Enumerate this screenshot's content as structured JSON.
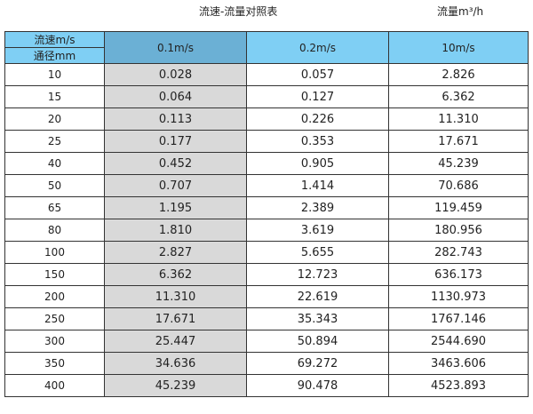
{
  "title": "流速-流量对照表",
  "unit_label": "流量m³/h",
  "table": {
    "corner_top": "流速m/s",
    "corner_bottom": "通径mm",
    "columns": [
      "0.1m/s",
      "0.2m/s",
      "10m/s"
    ],
    "rows": [
      [
        "10",
        "0.028",
        "0.057",
        "2.826"
      ],
      [
        "15",
        "0.064",
        "0.127",
        "6.362"
      ],
      [
        "20",
        "0.113",
        "0.226",
        "11.310"
      ],
      [
        "25",
        "0.177",
        "0.353",
        "17.671"
      ],
      [
        "40",
        "0.452",
        "0.905",
        "45.239"
      ],
      [
        "50",
        "0.707",
        "1.414",
        "70.686"
      ],
      [
        "65",
        "1.195",
        "2.389",
        "119.459"
      ],
      [
        "80",
        "1.810",
        "3.619",
        "180.956"
      ],
      [
        "100",
        "2.827",
        "5.655",
        "282.743"
      ],
      [
        "150",
        "6.362",
        "12.723",
        "636.173"
      ],
      [
        "200",
        "11.310",
        "22.619",
        "1130.973"
      ],
      [
        "250",
        "17.671",
        "35.343",
        "1767.146"
      ],
      [
        "300",
        "25.447",
        "50.894",
        "2544.690"
      ],
      [
        "350",
        "34.636",
        "69.272",
        "3463.606"
      ],
      [
        "400",
        "45.239",
        "90.478",
        "4523.893"
      ]
    ]
  },
  "colors": {
    "header": "#7fcff4",
    "selected_header": "#6bb0d5",
    "selected_column": "#d9d9d9"
  }
}
